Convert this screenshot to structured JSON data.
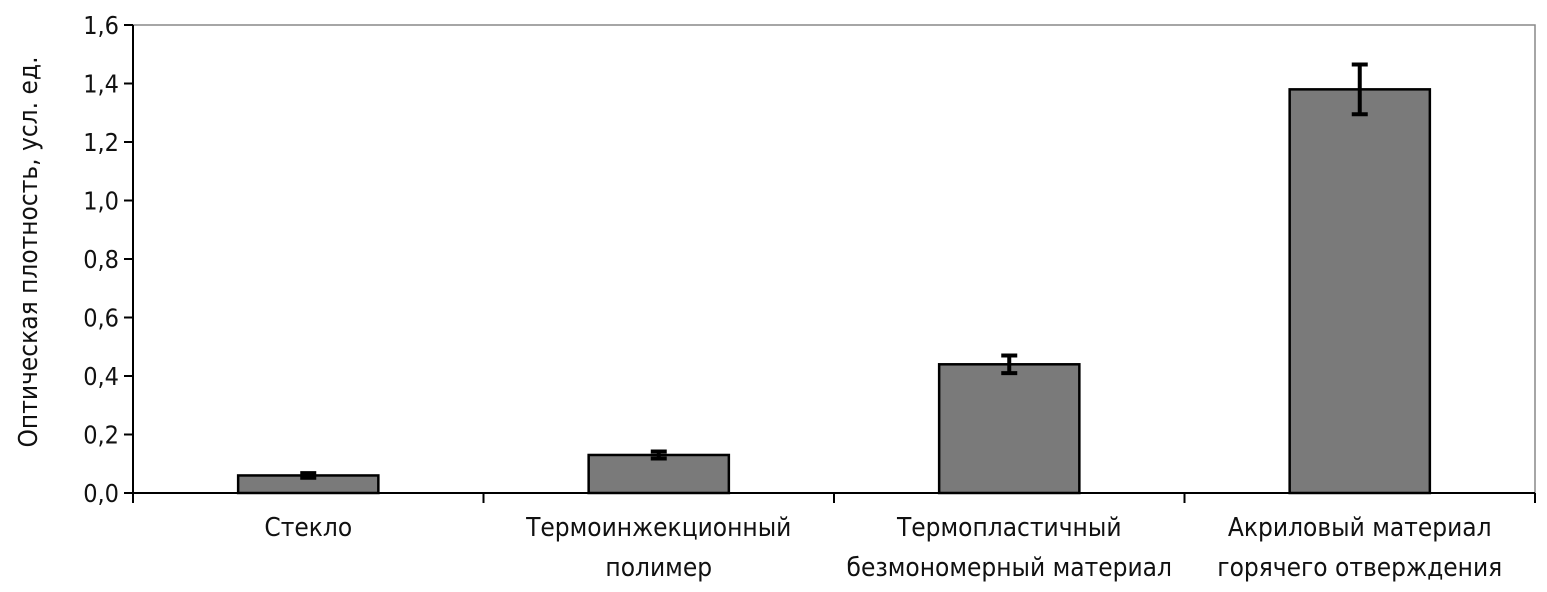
{
  "chart_data": {
    "type": "bar",
    "title": "",
    "xlabel": "",
    "ylabel": "Оптическая плотность, усл. ед.",
    "ylim": [
      0,
      1.6
    ],
    "yticks": [
      "0,0",
      "0,2",
      "0,4",
      "0,6",
      "0,8",
      "1,0",
      "1,2",
      "1,4",
      "1,6"
    ],
    "categories": [
      [
        "Стекло"
      ],
      [
        "Термоинжекционный",
        "полимер"
      ],
      [
        "Термопластичный",
        "безмономерный материал"
      ],
      [
        "Акриловый материал",
        "горячего отверждения"
      ]
    ],
    "values": [
      0.06,
      0.13,
      0.44,
      1.38
    ],
    "errors": [
      0.008,
      0.012,
      0.03,
      0.085
    ],
    "grid": false,
    "legend": "none",
    "colors": {
      "bar_fill": "#7a7a7a",
      "bar_stroke": "#000000",
      "axis": "#000000",
      "frame": "#888888"
    }
  }
}
